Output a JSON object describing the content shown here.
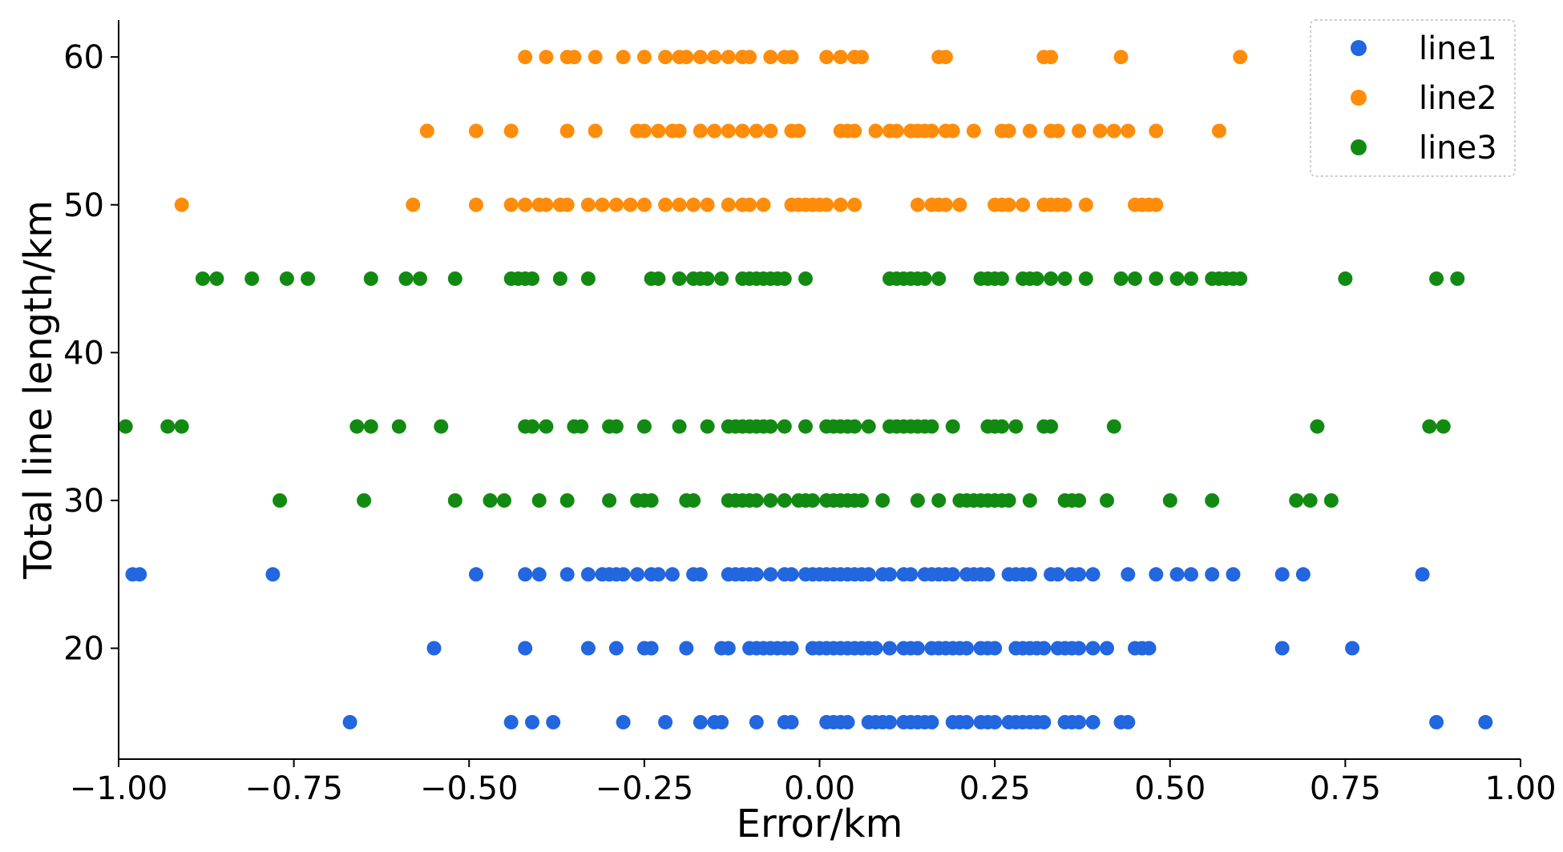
{
  "chart_data": {
    "type": "scatter",
    "xlabel": "Error/km",
    "ylabel": "Total line length/km",
    "xlim": [
      -1.0,
      1.0
    ],
    "ylim": [
      12.5,
      62.5
    ],
    "x_ticks": [
      "−1.00",
      "−0.75",
      "−0.50",
      "−0.25",
      "0.00",
      "0.25",
      "0.50",
      "0.75",
      "1.00"
    ],
    "x_tick_values": [
      -1.0,
      -0.75,
      -0.5,
      -0.25,
      0.0,
      0.25,
      0.5,
      0.75,
      1.0
    ],
    "y_ticks": [
      "20",
      "30",
      "40",
      "50",
      "60"
    ],
    "y_tick_values": [
      20,
      30,
      40,
      50,
      60
    ],
    "grid": false,
    "legend_position": "top-right",
    "series": [
      {
        "name": "line1",
        "color": "#2266e0",
        "points": [
          {
            "y": 15,
            "x": [
              -0.67,
              -0.44,
              -0.41,
              -0.38,
              -0.28,
              -0.22,
              -0.17,
              -0.15,
              -0.14,
              -0.09,
              -0.05,
              -0.04,
              0.01,
              0.02,
              0.03,
              0.04,
              0.07,
              0.08,
              0.09,
              0.1,
              0.12,
              0.13,
              0.14,
              0.15,
              0.16,
              0.19,
              0.2,
              0.21,
              0.23,
              0.24,
              0.25,
              0.27,
              0.28,
              0.29,
              0.3,
              0.31,
              0.32,
              0.35,
              0.36,
              0.37,
              0.39,
              0.43,
              0.44,
              0.88,
              0.95
            ]
          },
          {
            "y": 20,
            "x": [
              -0.55,
              -0.42,
              -0.33,
              -0.29,
              -0.25,
              -0.24,
              -0.19,
              -0.14,
              -0.13,
              -0.1,
              -0.09,
              -0.08,
              -0.07,
              -0.06,
              -0.05,
              -0.04,
              -0.01,
              0.0,
              0.01,
              0.02,
              0.03,
              0.04,
              0.05,
              0.06,
              0.07,
              0.08,
              0.1,
              0.12,
              0.13,
              0.14,
              0.16,
              0.17,
              0.18,
              0.19,
              0.2,
              0.21,
              0.23,
              0.24,
              0.25,
              0.28,
              0.29,
              0.3,
              0.31,
              0.32,
              0.34,
              0.35,
              0.36,
              0.37,
              0.39,
              0.41,
              0.45,
              0.46,
              0.47,
              0.66,
              0.76
            ]
          },
          {
            "y": 25,
            "x": [
              -0.98,
              -0.97,
              -0.78,
              -0.49,
              -0.42,
              -0.4,
              -0.36,
              -0.33,
              -0.31,
              -0.3,
              -0.29,
              -0.28,
              -0.26,
              -0.24,
              -0.23,
              -0.21,
              -0.18,
              -0.17,
              -0.13,
              -0.12,
              -0.11,
              -0.1,
              -0.09,
              -0.07,
              -0.05,
              -0.04,
              -0.02,
              -0.01,
              0.0,
              0.01,
              0.02,
              0.03,
              0.04,
              0.05,
              0.06,
              0.07,
              0.09,
              0.1,
              0.12,
              0.13,
              0.15,
              0.16,
              0.17,
              0.18,
              0.19,
              0.21,
              0.22,
              0.23,
              0.24,
              0.27,
              0.28,
              0.29,
              0.3,
              0.33,
              0.34,
              0.36,
              0.37,
              0.39,
              0.44,
              0.48,
              0.51,
              0.53,
              0.56,
              0.59,
              0.66,
              0.69,
              0.86
            ]
          }
        ]
      },
      {
        "name": "line2",
        "color": "#ff8c0a",
        "points": [
          {
            "y": 50,
            "x": [
              -0.91,
              -0.58,
              -0.49,
              -0.44,
              -0.42,
              -0.4,
              -0.39,
              -0.37,
              -0.36,
              -0.33,
              -0.31,
              -0.29,
              -0.27,
              -0.25,
              -0.22,
              -0.2,
              -0.18,
              -0.16,
              -0.13,
              -0.11,
              -0.1,
              -0.08,
              -0.04,
              -0.03,
              -0.02,
              -0.01,
              0.0,
              0.01,
              0.03,
              0.05,
              0.14,
              0.16,
              0.17,
              0.18,
              0.2,
              0.25,
              0.26,
              0.27,
              0.29,
              0.32,
              0.33,
              0.34,
              0.35,
              0.38,
              0.45,
              0.46,
              0.47,
              0.48
            ]
          },
          {
            "y": 55,
            "x": [
              -0.56,
              -0.49,
              -0.44,
              -0.36,
              -0.32,
              -0.26,
              -0.25,
              -0.23,
              -0.21,
              -0.2,
              -0.17,
              -0.15,
              -0.13,
              -0.11,
              -0.09,
              -0.07,
              -0.04,
              -0.03,
              0.03,
              0.04,
              0.05,
              0.08,
              0.1,
              0.11,
              0.13,
              0.14,
              0.15,
              0.16,
              0.18,
              0.19,
              0.22,
              0.26,
              0.27,
              0.3,
              0.33,
              0.34,
              0.37,
              0.4,
              0.42,
              0.44,
              0.48,
              0.57
            ]
          },
          {
            "y": 60,
            "x": [
              -0.42,
              -0.39,
              -0.36,
              -0.35,
              -0.32,
              -0.28,
              -0.25,
              -0.22,
              -0.2,
              -0.19,
              -0.17,
              -0.15,
              -0.13,
              -0.11,
              -0.1,
              -0.07,
              -0.05,
              -0.04,
              0.01,
              0.03,
              0.05,
              0.06,
              0.17,
              0.18,
              0.32,
              0.33,
              0.43,
              0.6
            ]
          }
        ]
      },
      {
        "name": "line3",
        "color": "#128a12",
        "points": [
          {
            "y": 30,
            "x": [
              -0.77,
              -0.65,
              -0.52,
              -0.47,
              -0.45,
              -0.4,
              -0.36,
              -0.3,
              -0.26,
              -0.25,
              -0.24,
              -0.19,
              -0.18,
              -0.13,
              -0.12,
              -0.11,
              -0.1,
              -0.09,
              -0.07,
              -0.05,
              -0.03,
              -0.02,
              -0.01,
              0.01,
              0.02,
              0.03,
              0.04,
              0.05,
              0.06,
              0.09,
              0.14,
              0.17,
              0.2,
              0.21,
              0.22,
              0.23,
              0.24,
              0.25,
              0.26,
              0.27,
              0.3,
              0.35,
              0.36,
              0.37,
              0.41,
              0.5,
              0.56,
              0.68,
              0.7,
              0.73
            ]
          },
          {
            "y": 35,
            "x": [
              -0.99,
              -0.93,
              -0.91,
              -0.66,
              -0.64,
              -0.6,
              -0.54,
              -0.42,
              -0.41,
              -0.39,
              -0.35,
              -0.34,
              -0.3,
              -0.29,
              -0.25,
              -0.2,
              -0.16,
              -0.13,
              -0.12,
              -0.11,
              -0.1,
              -0.09,
              -0.08,
              -0.07,
              -0.05,
              -0.02,
              0.01,
              0.02,
              0.03,
              0.04,
              0.05,
              0.07,
              0.1,
              0.11,
              0.12,
              0.13,
              0.14,
              0.15,
              0.16,
              0.19,
              0.24,
              0.25,
              0.26,
              0.28,
              0.32,
              0.33,
              0.42,
              0.71,
              0.87,
              0.89
            ]
          },
          {
            "y": 45,
            "x": [
              -0.88,
              -0.86,
              -0.81,
              -0.76,
              -0.73,
              -0.64,
              -0.59,
              -0.57,
              -0.52,
              -0.44,
              -0.43,
              -0.42,
              -0.41,
              -0.37,
              -0.33,
              -0.24,
              -0.23,
              -0.2,
              -0.18,
              -0.17,
              -0.16,
              -0.14,
              -0.11,
              -0.1,
              -0.09,
              -0.08,
              -0.07,
              -0.06,
              -0.05,
              -0.02,
              0.1,
              0.11,
              0.12,
              0.13,
              0.14,
              0.15,
              0.17,
              0.23,
              0.24,
              0.25,
              0.26,
              0.29,
              0.3,
              0.31,
              0.33,
              0.35,
              0.38,
              0.43,
              0.45,
              0.48,
              0.51,
              0.53,
              0.56,
              0.57,
              0.58,
              0.59,
              0.6,
              0.75,
              0.88,
              0.91
            ]
          }
        ]
      }
    ]
  }
}
